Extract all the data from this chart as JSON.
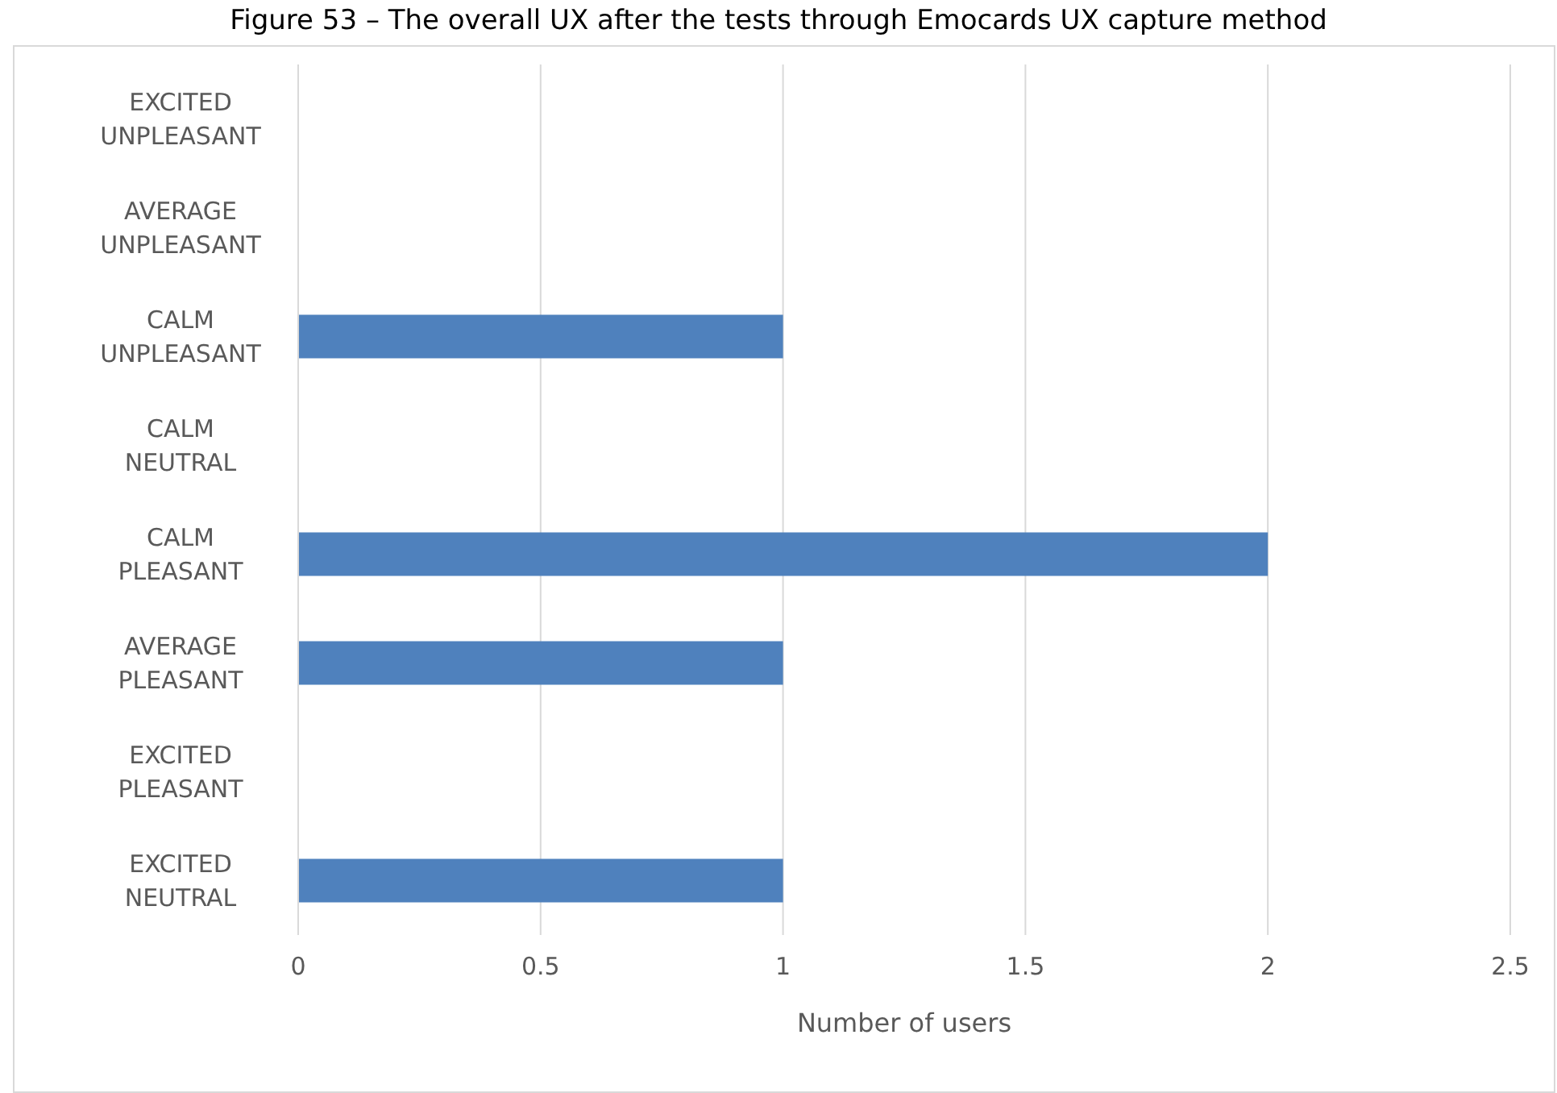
{
  "chart_data": {
    "type": "bar",
    "orientation": "horizontal",
    "title": "Figure 53 – The overall UX after the tests through Emocards UX capture method",
    "categories": [
      "EXCITED UNPLEASANT",
      "AVERAGE UNPLEASANT",
      "CALM UNPLEASANT",
      "CALM NEUTRAL",
      "CALM PLEASANT",
      "AVERAGE PLEASANT",
      "EXCITED PLEASANT",
      "EXCITED NEUTRAL"
    ],
    "values": [
      0,
      0,
      1,
      0,
      2,
      1,
      0,
      1
    ],
    "color": "#4f81bd",
    "xlim": [
      0,
      2.5
    ],
    "xticks": [
      0,
      0.5,
      1,
      1.5,
      2,
      2.5
    ],
    "xlabel": "Number of users",
    "grid": "x"
  }
}
